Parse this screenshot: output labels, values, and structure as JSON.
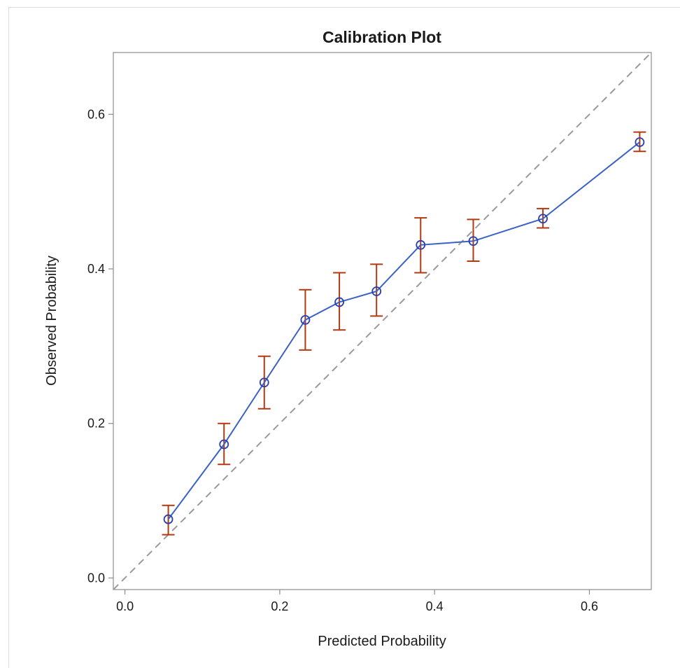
{
  "chart_data": {
    "type": "line",
    "title": "Calibration Plot",
    "xlabel": "Predicted Probability",
    "ylabel": "Observed Probability",
    "xlim": [
      -0.015,
      0.68
    ],
    "ylim": [
      -0.015,
      0.68
    ],
    "xticks": [
      0.0,
      0.2,
      0.4,
      0.6
    ],
    "yticks": [
      0.0,
      0.2,
      0.4,
      0.6
    ],
    "xtick_labels": [
      "0.0",
      "0.2",
      "0.4",
      "0.6"
    ],
    "ytick_labels": [
      "0.0",
      "0.2",
      "0.4",
      "0.6"
    ],
    "grid": false,
    "reference_line": {
      "style": "dashed",
      "x": [
        -0.015,
        0.68
      ],
      "y": [
        -0.015,
        0.68
      ]
    },
    "series": [
      {
        "x": [
          0.056,
          0.128,
          0.18,
          0.233,
          0.277,
          0.325,
          0.382,
          0.45,
          0.54,
          0.665
        ],
        "y": [
          0.076,
          0.173,
          0.253,
          0.334,
          0.357,
          0.371,
          0.431,
          0.436,
          0.465,
          0.564
        ],
        "lower": [
          0.056,
          0.147,
          0.219,
          0.295,
          0.321,
          0.339,
          0.395,
          0.41,
          0.453,
          0.552
        ],
        "upper": [
          0.094,
          0.2,
          0.287,
          0.373,
          0.395,
          0.406,
          0.466,
          0.464,
          0.478,
          0.577
        ]
      }
    ],
    "colors": {
      "line": "#3a62c4",
      "marker": "#2b3fae",
      "error_bar": "#b23a12",
      "reference": "#9a9a9a",
      "axis": "#8c8c8c",
      "text": "#1a1a1a"
    }
  }
}
